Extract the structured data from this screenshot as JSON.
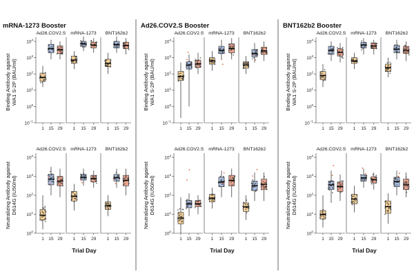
{
  "chart_data": {
    "type": "box",
    "colors": {
      "day1": "#f3cf97",
      "day15": "#a9bde0",
      "day29": "#eaa58f",
      "point": "#3c3c3c",
      "outlier": "#e06a4e"
    },
    "x_title": "Trial Day",
    "x_ticks": [
      "1",
      "15",
      "29"
    ],
    "rows": [
      {
        "name": "binding",
        "ylabel_line1": "Binding Antibody against",
        "ylabel_line2": "WA1 S-2P (BAU/ml)",
        "y_exp_range": [
          -1,
          4
        ],
        "y_ticks": [
          {
            "base": "10",
            "exp": "−1",
            "value": -1
          },
          {
            "base": "10",
            "exp": "0",
            "value": 0
          },
          {
            "base": "10",
            "exp": "1",
            "value": 1
          },
          {
            "base": "10",
            "exp": "2",
            "value": 2
          },
          {
            "base": "10",
            "exp": "3",
            "value": 3
          },
          {
            "base": "10",
            "exp": "4",
            "value": 4
          }
        ]
      },
      {
        "name": "neutralizing",
        "ylabel_line1": "Neutralizing Antibody against",
        "ylabel_line2": "D614G (IU50/ml)",
        "y_exp_range": [
          0,
          4
        ],
        "y_ticks": [
          {
            "base": "10",
            "exp": "0",
            "value": 0
          },
          {
            "base": "10",
            "exp": "1",
            "value": 1
          },
          {
            "base": "10",
            "exp": "2",
            "value": 2
          },
          {
            "base": "10",
            "exp": "3",
            "value": 3
          },
          {
            "base": "10",
            "exp": "4",
            "value": 4
          }
        ]
      }
    ],
    "panels": [
      {
        "title": "mRNA-1273 Booster",
        "subgroups": [
          {
            "name": "Ad26.COV2.S",
            "binding": [
              {
                "q1": 1.55,
                "median": 1.78,
                "q3": 2.05,
                "lo": 1.2,
                "hi": 2.5
              },
              {
                "q1": 3.3,
                "median": 3.55,
                "q3": 3.82,
                "lo": 2.9,
                "hi": 4.1
              },
              {
                "q1": 3.25,
                "median": 3.48,
                "q3": 3.72,
                "lo": 2.9,
                "hi": 4.0
              }
            ],
            "neutralizing": [
              {
                "q1": 0.7,
                "median": 0.95,
                "q3": 1.25,
                "lo": 0.2,
                "hi": 2.0
              },
              {
                "q1": 2.55,
                "median": 2.85,
                "q3": 3.1,
                "lo": 2.0,
                "hi": 3.5
              },
              {
                "q1": 2.5,
                "median": 2.75,
                "q3": 3.0,
                "lo": 1.9,
                "hi": 3.4
              }
            ]
          },
          {
            "name": "mRNA-1273",
            "binding": [
              {
                "q1": 2.65,
                "median": 2.85,
                "q3": 3.1,
                "lo": 2.3,
                "hi": 3.4
              },
              {
                "q1": 3.7,
                "median": 3.85,
                "q3": 4.0,
                "lo": 3.4,
                "hi": 4.3
              },
              {
                "q1": 3.6,
                "median": 3.78,
                "q3": 3.95,
                "lo": 3.3,
                "hi": 4.2
              }
            ]
          },
          {
            "name": "BNT162b2",
            "binding": [
              {
                "q1": 2.45,
                "median": 2.65,
                "q3": 2.9,
                "lo": 2.0,
                "hi": 3.3
              },
              {
                "q1": 3.6,
                "median": 3.8,
                "q3": 4.0,
                "lo": 3.3,
                "hi": 4.3
              },
              {
                "q1": 3.55,
                "median": 3.75,
                "q3": 3.95,
                "lo": 3.2,
                "hi": 4.2
              }
            ]
          }
        ],
        "neutralizing": [
          [
            {
              "q1": 0.7,
              "median": 0.95,
              "q3": 1.25,
              "lo": 0.2,
              "hi": 2.0
            },
            {
              "q1": 2.55,
              "median": 2.85,
              "q3": 3.1,
              "lo": 2.0,
              "hi": 3.5
            },
            {
              "q1": 2.5,
              "median": 2.75,
              "q3": 3.0,
              "lo": 1.9,
              "hi": 3.4
            }
          ],
          [
            {
              "q1": 1.7,
              "median": 1.95,
              "q3": 2.2,
              "lo": 1.2,
              "hi": 2.6
            },
            {
              "q1": 2.8,
              "median": 2.95,
              "q3": 3.1,
              "lo": 2.5,
              "hi": 3.4
            },
            {
              "q1": 2.7,
              "median": 2.88,
              "q3": 3.05,
              "lo": 2.4,
              "hi": 3.3
            }
          ],
          [
            {
              "q1": 1.25,
              "median": 1.45,
              "q3": 1.65,
              "lo": 0.9,
              "hi": 2.0
            },
            {
              "q1": 2.75,
              "median": 2.92,
              "q3": 3.1,
              "lo": 2.4,
              "hi": 3.4
            },
            {
              "q1": 2.5,
              "median": 2.78,
              "q3": 3.05,
              "lo": 2.0,
              "hi": 3.4
            }
          ]
        ]
      },
      {
        "title": "Ad26.COV2.S Booster",
        "subgroups": [
          {
            "name": "Ad26.COV2.S",
            "binding": [
              {
                "q1": 1.6,
                "median": 1.85,
                "q3": 2.15,
                "lo": -0.7,
                "hi": 2.7
              },
              {
                "q1": 2.3,
                "median": 2.55,
                "q3": 2.75,
                "lo": 0.0,
                "hi": 3.2
              },
              {
                "q1": 2.4,
                "median": 2.62,
                "q3": 2.85,
                "lo": 2.0,
                "hi": 3.3
              }
            ]
          },
          {
            "name": "mRNA-1273",
            "binding": [
              {
                "q1": 2.6,
                "median": 2.8,
                "q3": 3.0,
                "lo": 2.2,
                "hi": 3.4
              },
              {
                "q1": 3.25,
                "median": 3.45,
                "q3": 3.7,
                "lo": 2.9,
                "hi": 4.1
              },
              {
                "q1": 3.3,
                "median": 3.55,
                "q3": 3.85,
                "lo": 2.9,
                "hi": 4.2
              }
            ]
          },
          {
            "name": "BNT162b2",
            "binding": [
              {
                "q1": 2.35,
                "median": 2.55,
                "q3": 2.75,
                "lo": 2.0,
                "hi": 3.1
              },
              {
                "q1": 3.05,
                "median": 3.25,
                "q3": 3.5,
                "lo": 2.7,
                "hi": 3.9
              },
              {
                "q1": 3.2,
                "median": 3.42,
                "q3": 3.65,
                "lo": 2.8,
                "hi": 4.0
              }
            ]
          }
        ],
        "neutralizing": [
          [
            {
              "q1": 0.5,
              "median": 0.8,
              "q3": 1.1,
              "lo": 0.0,
              "hi": 1.9
            },
            {
              "q1": 1.35,
              "median": 1.55,
              "q3": 1.72,
              "lo": 0.9,
              "hi": 2.1
            },
            {
              "q1": 1.4,
              "median": 1.55,
              "q3": 1.72,
              "lo": 1.0,
              "hi": 2.0
            }
          ],
          [
            {
              "q1": 1.65,
              "median": 1.85,
              "q3": 2.05,
              "lo": 1.3,
              "hi": 2.4
            },
            {
              "q1": 2.45,
              "median": 2.7,
              "q3": 2.95,
              "lo": 1.9,
              "hi": 3.3
            },
            {
              "q1": 2.5,
              "median": 2.78,
              "q3": 3.05,
              "lo": 1.9,
              "hi": 3.4
            }
          ],
          [
            {
              "q1": 1.15,
              "median": 1.38,
              "q3": 1.6,
              "lo": 0.7,
              "hi": 2.0
            },
            {
              "q1": 2.25,
              "median": 2.5,
              "q3": 2.75,
              "lo": 1.7,
              "hi": 3.2
            },
            {
              "q1": 2.3,
              "median": 2.58,
              "q3": 2.85,
              "lo": 1.7,
              "hi": 3.2
            }
          ]
        ]
      },
      {
        "title": "BNT162b2 Booster",
        "subgroups": [
          {
            "name": "Ad26.COV2.S",
            "binding": [
              {
                "q1": 1.65,
                "median": 1.9,
                "q3": 2.15,
                "lo": 1.2,
                "hi": 2.6
              },
              {
                "q1": 3.2,
                "median": 3.45,
                "q3": 3.7,
                "lo": 2.8,
                "hi": 4.0
              },
              {
                "q1": 3.1,
                "median": 3.32,
                "q3": 3.55,
                "lo": 2.7,
                "hi": 3.9
              }
            ]
          },
          {
            "name": "mRNA-1273",
            "binding": [
              {
                "q1": 2.65,
                "median": 2.8,
                "q3": 3.0,
                "lo": 2.3,
                "hi": 3.3
              },
              {
                "q1": 3.6,
                "median": 3.78,
                "q3": 3.95,
                "lo": 3.2,
                "hi": 4.2
              },
              {
                "q1": 3.55,
                "median": 3.72,
                "q3": 3.9,
                "lo": 3.2,
                "hi": 4.1
              }
            ]
          },
          {
            "name": "BNT162b2",
            "binding": [
              {
                "q1": 2.15,
                "median": 2.38,
                "q3": 2.6,
                "lo": 1.8,
                "hi": 3.0
              },
              {
                "q1": 3.3,
                "median": 3.52,
                "q3": 3.75,
                "lo": 2.9,
                "hi": 4.1
              },
              {
                "q1": 3.25,
                "median": 3.45,
                "q3": 3.7,
                "lo": 2.8,
                "hi": 4.0
              }
            ]
          }
        ],
        "neutralizing": [
          [
            {
              "q1": 0.75,
              "median": 0.98,
              "q3": 1.2,
              "lo": 0.3,
              "hi": 2.0
            },
            {
              "q1": 2.3,
              "median": 2.55,
              "q3": 2.75,
              "lo": 1.6,
              "hi": 3.3
            },
            {
              "q1": 2.2,
              "median": 2.45,
              "q3": 2.7,
              "lo": 1.7,
              "hi": 3.1
            }
          ],
          [
            {
              "q1": 1.55,
              "median": 1.8,
              "q3": 2.05,
              "lo": 1.1,
              "hi": 2.5
            },
            {
              "q1": 2.75,
              "median": 2.92,
              "q3": 3.08,
              "lo": 2.4,
              "hi": 3.4
            },
            {
              "q1": 2.65,
              "median": 2.82,
              "q3": 2.98,
              "lo": 2.3,
              "hi": 3.2
            }
          ],
          [
            {
              "q1": 1.05,
              "median": 1.4,
              "q3": 1.7,
              "lo": 0.5,
              "hi": 2.1
            },
            {
              "q1": 2.45,
              "median": 2.72,
              "q3": 2.95,
              "lo": 2.0,
              "hi": 3.3
            },
            {
              "q1": 2.3,
              "median": 2.55,
              "q3": 2.85,
              "lo": 1.9,
              "hi": 3.2
            }
          ]
        ]
      }
    ]
  }
}
